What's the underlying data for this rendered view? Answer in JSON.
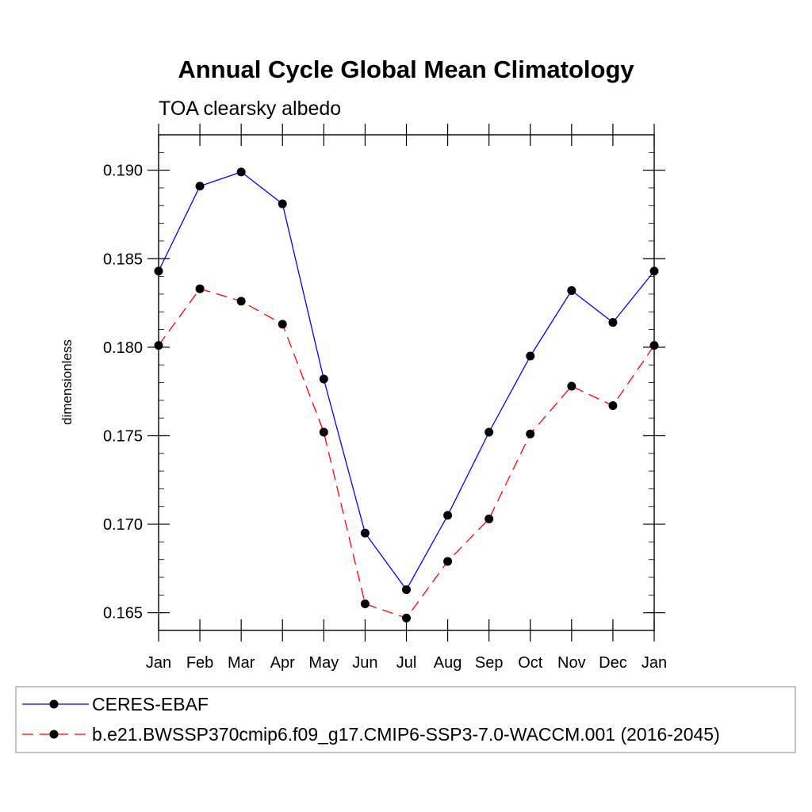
{
  "chart_data": {
    "type": "line",
    "title": "Annual Cycle Global Mean Climatology",
    "subtitle": "TOA clearsky albedo",
    "xlabel": "",
    "ylabel": "dimensionless",
    "categories": [
      "Jan",
      "Feb",
      "Mar",
      "Apr",
      "May",
      "Jun",
      "Jul",
      "Aug",
      "Sep",
      "Oct",
      "Nov",
      "Dec",
      "Jan"
    ],
    "ylim": [
      0.164,
      0.192
    ],
    "yticks": [
      "0.165",
      "0.170",
      "0.175",
      "0.180",
      "0.185",
      "0.190"
    ],
    "series": [
      {
        "name": "CERES-EBAF",
        "color": "#0000ff",
        "line_style": "solid",
        "marker": "filled-circle",
        "values": [
          0.1843,
          0.1891,
          0.1899,
          0.1881,
          0.1782,
          0.1695,
          0.1663,
          0.1705,
          0.1752,
          0.1795,
          0.1832,
          0.1814,
          0.1843
        ]
      },
      {
        "name": "b.e21.BWSSP370cmip6.f09_g17.CMIP6-SSP3-7.0-WACCM.001 (2016-2045)",
        "color": "#ff0000",
        "line_style": "dashed",
        "marker": "filled-circle",
        "values": [
          0.1801,
          0.1833,
          0.1826,
          0.1813,
          0.1752,
          0.1655,
          0.1647,
          0.1679,
          0.1703,
          0.1751,
          0.1778,
          0.1767,
          0.1801
        ]
      }
    ],
    "legend_position": "bottom"
  }
}
